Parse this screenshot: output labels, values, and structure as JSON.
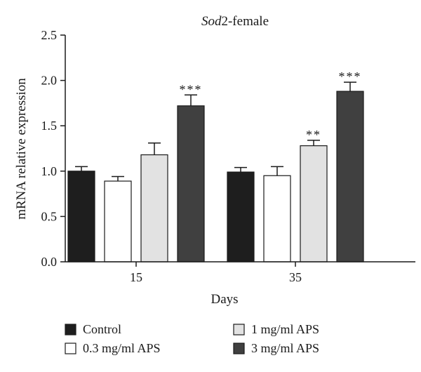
{
  "chart_data": {
    "type": "bar",
    "title": {
      "italic": "Sod",
      "rest": "2-female"
    },
    "xlabel": "Days",
    "ylabel": "mRNA relative expression",
    "ylim": [
      0,
      2.5
    ],
    "yticks": [
      "0.0",
      "0.5",
      "1.0",
      "1.5",
      "2.0",
      "2.5"
    ],
    "categories": [
      "15",
      "35"
    ],
    "legend_position": "bottom",
    "series": [
      {
        "name": "Control",
        "color": "#1e1e1e",
        "values": [
          1.0,
          0.99
        ],
        "errors": [
          0.05,
          0.05
        ],
        "sig": [
          "",
          ""
        ]
      },
      {
        "name": "0.3 mg/ml APS",
        "color": "#ffffff",
        "values": [
          0.89,
          0.95
        ],
        "errors": [
          0.05,
          0.1
        ],
        "sig": [
          "",
          ""
        ]
      },
      {
        "name": "1 mg/ml APS",
        "color": "#e2e2e2",
        "values": [
          1.18,
          1.28
        ],
        "errors": [
          0.13,
          0.06
        ],
        "sig": [
          "",
          "**"
        ]
      },
      {
        "name": "3 mg/ml APS",
        "color": "#404040",
        "values": [
          1.72,
          1.88
        ],
        "errors": [
          0.12,
          0.1
        ],
        "sig": [
          "***",
          "***"
        ]
      }
    ]
  }
}
